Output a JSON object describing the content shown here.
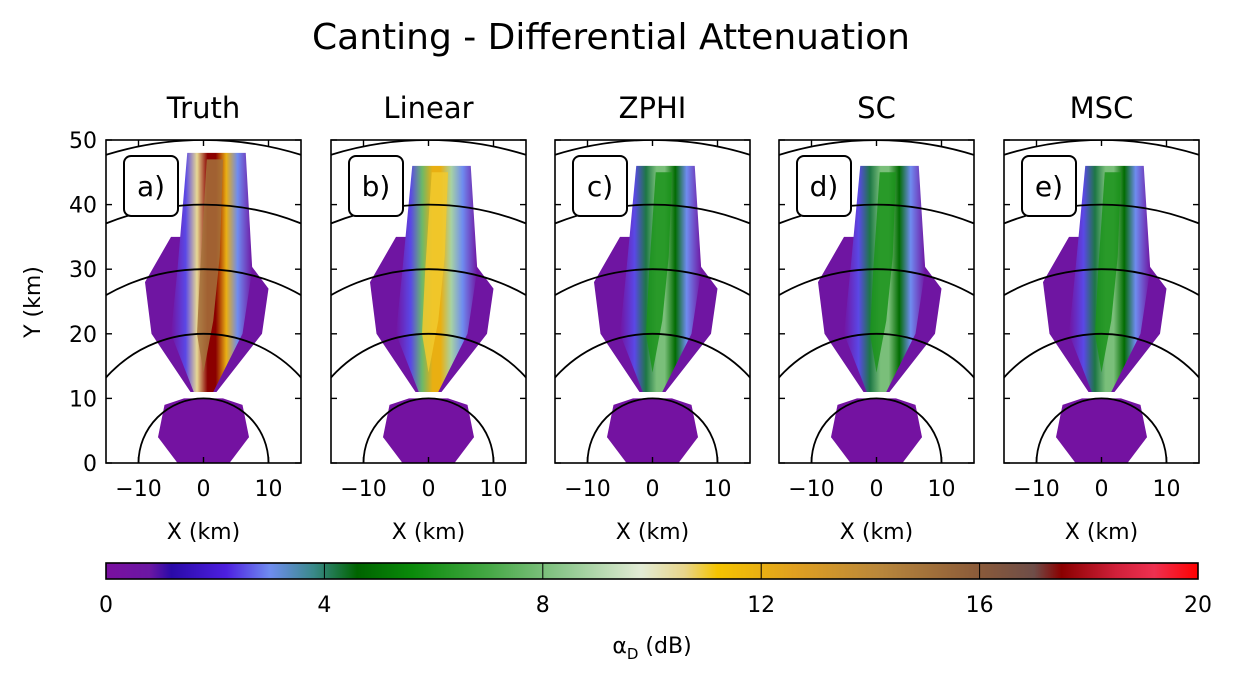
{
  "chart_data": {
    "type": "heatmap",
    "title": "Canting - Differential Attenuation",
    "xlabel": "X (km)",
    "ylabel": "Y (km)",
    "xlim": [
      -15,
      15
    ],
    "ylim": [
      0,
      50
    ],
    "x_ticks": [
      "−10",
      "0",
      "10"
    ],
    "y_ticks": [
      "0",
      "10",
      "20",
      "30",
      "40",
      "50"
    ],
    "range_rings_km": [
      10,
      20,
      30,
      40,
      50
    ],
    "panels": [
      {
        "title": "Truth",
        "label": "a)",
        "max_value_db": 17.5,
        "core_value_db": 15,
        "upper_extent_km": 48
      },
      {
        "title": "Linear",
        "label": "b)",
        "max_value_db": 12,
        "core_value_db": 11,
        "upper_extent_km": 46
      },
      {
        "title": "ZPHI",
        "label": "c)",
        "max_value_db": 8,
        "core_value_db": 6,
        "upper_extent_km": 46
      },
      {
        "title": "SC",
        "label": "d)",
        "max_value_db": 8,
        "core_value_db": 6,
        "upper_extent_km": 46
      },
      {
        "title": "MSC",
        "label": "e)",
        "max_value_db": 8,
        "core_value_db": 6,
        "upper_extent_km": 46
      }
    ],
    "colorbar": {
      "label_symbol": "α",
      "label_subscript": "D",
      "label_unit": "(dB)",
      "range": [
        0,
        20
      ],
      "ticks": [
        "0",
        "4",
        "8",
        "12",
        "16",
        "20"
      ],
      "stops": [
        {
          "v": 0,
          "c": "#7a0fa0"
        },
        {
          "v": 0.8,
          "c": "#6b17a3"
        },
        {
          "v": 1.2,
          "c": "#2a0aa8"
        },
        {
          "v": 2.2,
          "c": "#4d1fe0"
        },
        {
          "v": 3,
          "c": "#6f8cf0"
        },
        {
          "v": 3.8,
          "c": "#3a8a8a"
        },
        {
          "v": 4.6,
          "c": "#006400"
        },
        {
          "v": 5.6,
          "c": "#0a8a0a"
        },
        {
          "v": 7,
          "c": "#45a845"
        },
        {
          "v": 8.4,
          "c": "#8fc88f"
        },
        {
          "v": 9.8,
          "c": "#e2ebd5"
        },
        {
          "v": 10.6,
          "c": "#e8d58a"
        },
        {
          "v": 11.2,
          "c": "#f5c400"
        },
        {
          "v": 12.6,
          "c": "#e0a020"
        },
        {
          "v": 14.2,
          "c": "#b8863b"
        },
        {
          "v": 16,
          "c": "#8a5a3a"
        },
        {
          "v": 17,
          "c": "#6e4d48"
        },
        {
          "v": 17.5,
          "c": "#8b0000"
        },
        {
          "v": 18.5,
          "c": "#d0203a"
        },
        {
          "v": 19.2,
          "c": "#ee3050"
        },
        {
          "v": 20,
          "c": "#ff0000"
        }
      ]
    }
  }
}
